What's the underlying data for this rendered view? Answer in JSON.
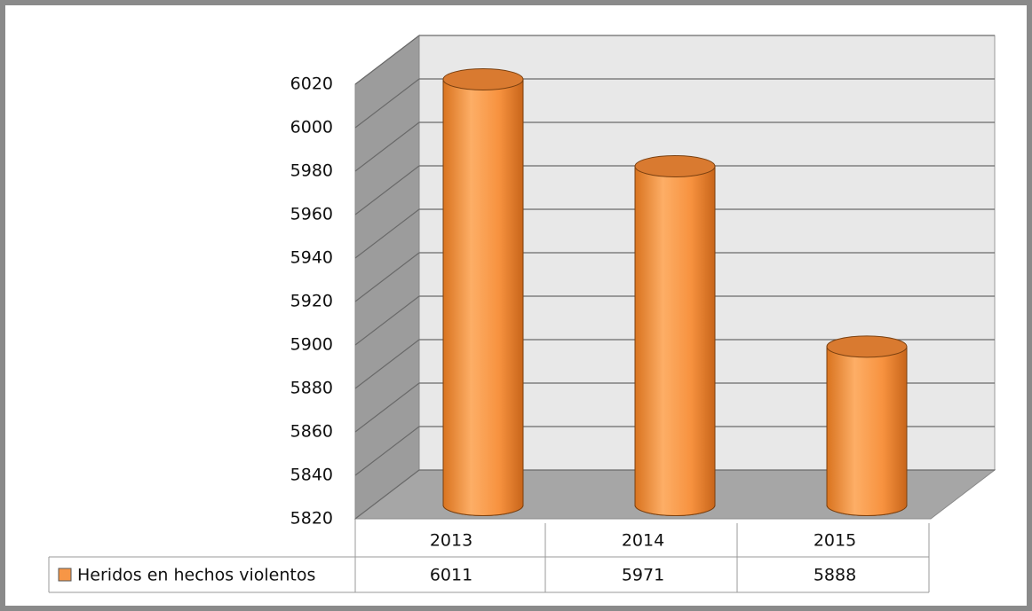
{
  "chart_data": {
    "type": "bar",
    "categories": [
      "2013",
      "2014",
      "2015"
    ],
    "series": [
      {
        "name": "Heridos en hechos violentos",
        "color": "#f79646",
        "values": [
          6011,
          5971,
          5888
        ]
      }
    ],
    "ylim": [
      5820,
      6020
    ],
    "yticks": [
      5820,
      5840,
      5860,
      5880,
      5900,
      5920,
      5940,
      5960,
      5980,
      6000,
      6020
    ],
    "grid": true,
    "legend": "bottom"
  }
}
